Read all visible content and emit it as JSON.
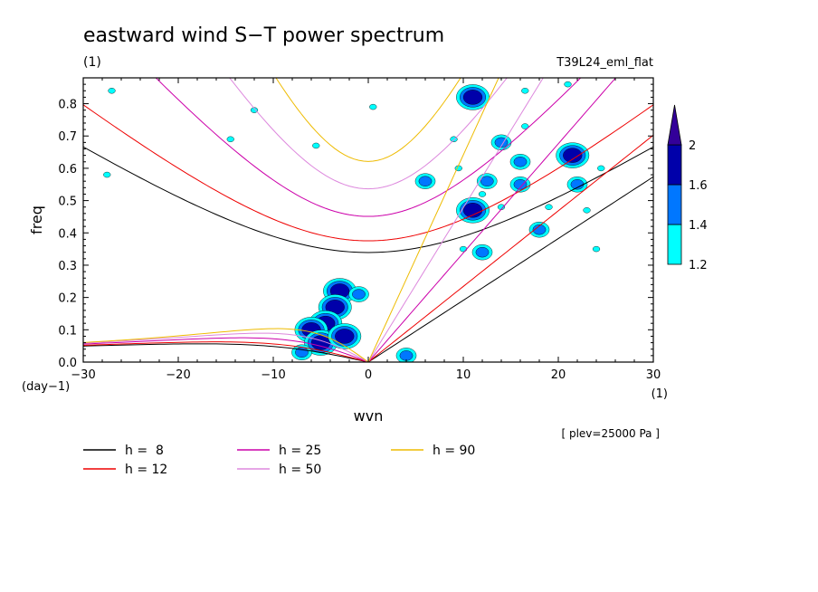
{
  "chart_data": {
    "type": "heatmap",
    "title": "eastward wind S−T power spectrum",
    "title_unit": "(1)",
    "run_label": "T39L24_eml_flat",
    "xlabel": "wvn",
    "ylabel": "freq",
    "x_unit": "(1)",
    "y_unit": "(day−1)",
    "xlim": [
      -30,
      30
    ],
    "ylim": [
      0,
      0.88
    ],
    "xticks": [
      "−30",
      "−20",
      "−10",
      "0",
      "10",
      "20",
      "30"
    ],
    "yticks": [
      "0.0",
      "0.1",
      "0.2",
      "0.3",
      "0.4",
      "0.5",
      "0.6",
      "0.7",
      "0.8"
    ],
    "level_note": "[ plev=25000 Pa ]",
    "colorbar": {
      "levels": [
        "1.2",
        "1.4",
        "1.6",
        "2"
      ],
      "colors": [
        "#00ffff",
        "#0077ff",
        "#0000aa",
        "#330099"
      ]
    },
    "contour_blobs": [
      {
        "x": -3.0,
        "y": 0.22,
        "level": 2
      },
      {
        "x": -3.5,
        "y": 0.17,
        "level": 2
      },
      {
        "x": -4.5,
        "y": 0.12,
        "level": 2
      },
      {
        "x": -6.0,
        "y": 0.1,
        "level": 2
      },
      {
        "x": -5.0,
        "y": 0.06,
        "level": 2
      },
      {
        "x": -2.5,
        "y": 0.08,
        "level": 2
      },
      {
        "x": -1.0,
        "y": 0.21,
        "level": 1
      },
      {
        "x": -7.0,
        "y": 0.03,
        "level": 1
      },
      {
        "x": 11.0,
        "y": 0.82,
        "level": 2
      },
      {
        "x": 14.0,
        "y": 0.68,
        "level": 1
      },
      {
        "x": 12.5,
        "y": 0.56,
        "level": 1
      },
      {
        "x": 11.0,
        "y": 0.47,
        "level": 2
      },
      {
        "x": 12.0,
        "y": 0.52,
        "level": 0
      },
      {
        "x": 16.0,
        "y": 0.55,
        "level": 1
      },
      {
        "x": 18.0,
        "y": 0.41,
        "level": 1
      },
      {
        "x": 21.5,
        "y": 0.64,
        "level": 2
      },
      {
        "x": 22.0,
        "y": 0.55,
        "level": 1
      },
      {
        "x": 16.5,
        "y": 0.73,
        "level": 0
      },
      {
        "x": 9.5,
        "y": 0.6,
        "level": 0
      },
      {
        "x": 9.0,
        "y": 0.69,
        "level": 0
      },
      {
        "x": 10.0,
        "y": 0.35,
        "level": 0
      },
      {
        "x": 12.0,
        "y": 0.34,
        "level": 1
      },
      {
        "x": 4.0,
        "y": 0.02,
        "level": 1
      },
      {
        "x": 14.0,
        "y": 0.48,
        "level": 0
      },
      {
        "x": 16.0,
        "y": 0.62,
        "level": 1
      },
      {
        "x": 6.0,
        "y": 0.56,
        "level": 1
      },
      {
        "x": 19.0,
        "y": 0.48,
        "level": 0
      },
      {
        "x": 23.0,
        "y": 0.47,
        "level": 0
      },
      {
        "x": 24.5,
        "y": 0.6,
        "level": 0
      },
      {
        "x": 0.5,
        "y": 0.79,
        "level": 0
      },
      {
        "x": -27.0,
        "y": 0.84,
        "level": 0
      },
      {
        "x": -27.5,
        "y": 0.58,
        "level": 0
      },
      {
        "x": -14.5,
        "y": 0.69,
        "level": 0
      },
      {
        "x": -5.5,
        "y": 0.67,
        "level": 0
      },
      {
        "x": -12.0,
        "y": 0.78,
        "level": 0
      },
      {
        "x": 24.0,
        "y": 0.35,
        "level": 0
      },
      {
        "x": 21.0,
        "y": 0.86,
        "level": 0
      },
      {
        "x": 16.5,
        "y": 0.84,
        "level": 0
      }
    ],
    "series": [
      {
        "name": "h =  8",
        "h": 8,
        "color": "#000000"
      },
      {
        "name": "h = 12",
        "h": 12,
        "color": "#ee0000"
      },
      {
        "name": "h = 25",
        "h": 25,
        "color": "#cc00aa"
      },
      {
        "name": "h = 50",
        "h": 50,
        "color": "#dd88dd"
      },
      {
        "name": "h = 90",
        "h": 90,
        "color": "#eebb00"
      }
    ]
  }
}
